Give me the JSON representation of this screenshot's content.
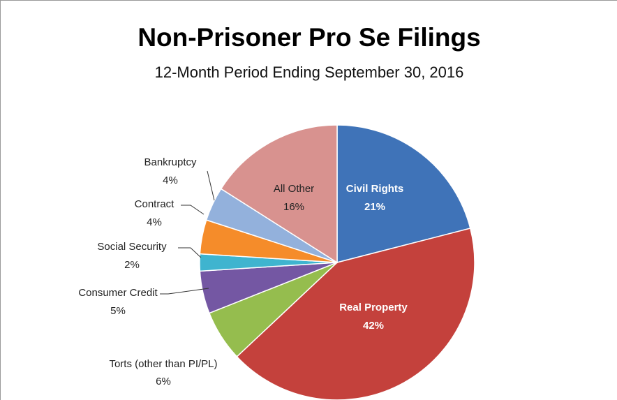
{
  "chart_data": {
    "type": "pie",
    "title": "Non-Prisoner Pro Se Filings",
    "subtitle": "12-Month Period Ending September 30, 2016",
    "categories": [
      "Civil Rights",
      "Real Property",
      "Torts (other than PI/PL)",
      "Consumer Credit",
      "Social Security",
      "Contract",
      "Bankruptcy",
      "All Other"
    ],
    "values": [
      21,
      42,
      6,
      5,
      2,
      4,
      4,
      16
    ],
    "value_labels": [
      "21%",
      "42%",
      "6%",
      "5%",
      "2%",
      "4%",
      "4%",
      "16%"
    ],
    "colors": [
      "#3f73b8",
      "#c4413c",
      "#95bd4e",
      "#7457a3",
      "#3fb4cf",
      "#f58c2a",
      "#93b1dc",
      "#d8928f"
    ]
  }
}
